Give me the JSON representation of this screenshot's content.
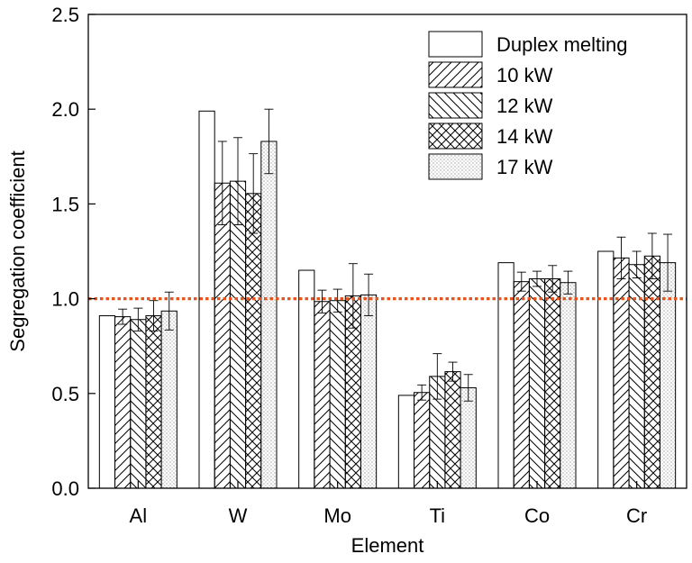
{
  "chart_data": {
    "type": "bar",
    "xlabel": "Element",
    "ylabel": "Segregation coefficient",
    "ylim": [
      0,
      2.5
    ],
    "yticks": [
      "0.0",
      "0.5",
      "1.0",
      "1.5",
      "2.0",
      "2.5"
    ],
    "categories": [
      "Al",
      "W",
      "Mo",
      "Ti",
      "Co",
      "Cr"
    ],
    "reference_line": {
      "y": 1.0,
      "style": "dotted",
      "color": "#e8521c"
    },
    "legend_position": "top-right",
    "series": [
      {
        "name": "Duplex melting",
        "pattern": "none",
        "values": [
          0.91,
          1.99,
          1.15,
          0.49,
          1.19,
          1.25
        ],
        "errors": [
          0,
          0,
          0,
          0,
          0,
          0
        ]
      },
      {
        "name": "10 kW",
        "pattern": "forward-diagonal",
        "values": [
          0.905,
          1.61,
          0.985,
          0.505,
          1.09,
          1.215
        ],
        "errors": [
          0.04,
          0.22,
          0.06,
          0.04,
          0.05,
          0.11
        ]
      },
      {
        "name": "12 kW",
        "pattern": "back-diagonal",
        "values": [
          0.89,
          1.62,
          0.99,
          0.59,
          1.105,
          1.18
        ],
        "errors": [
          0.06,
          0.23,
          0.06,
          0.12,
          0.04,
          0.07
        ]
      },
      {
        "name": "14 kW",
        "pattern": "crosshatch",
        "values": [
          0.91,
          1.555,
          1.015,
          0.615,
          1.105,
          1.225
        ],
        "errors": [
          0.08,
          0.21,
          0.17,
          0.05,
          0.07,
          0.12
        ]
      },
      {
        "name": "17 kW",
        "pattern": "dots",
        "values": [
          0.935,
          1.83,
          1.02,
          0.53,
          1.085,
          1.19
        ],
        "errors": [
          0.1,
          0.17,
          0.11,
          0.07,
          0.06,
          0.15
        ]
      }
    ]
  }
}
